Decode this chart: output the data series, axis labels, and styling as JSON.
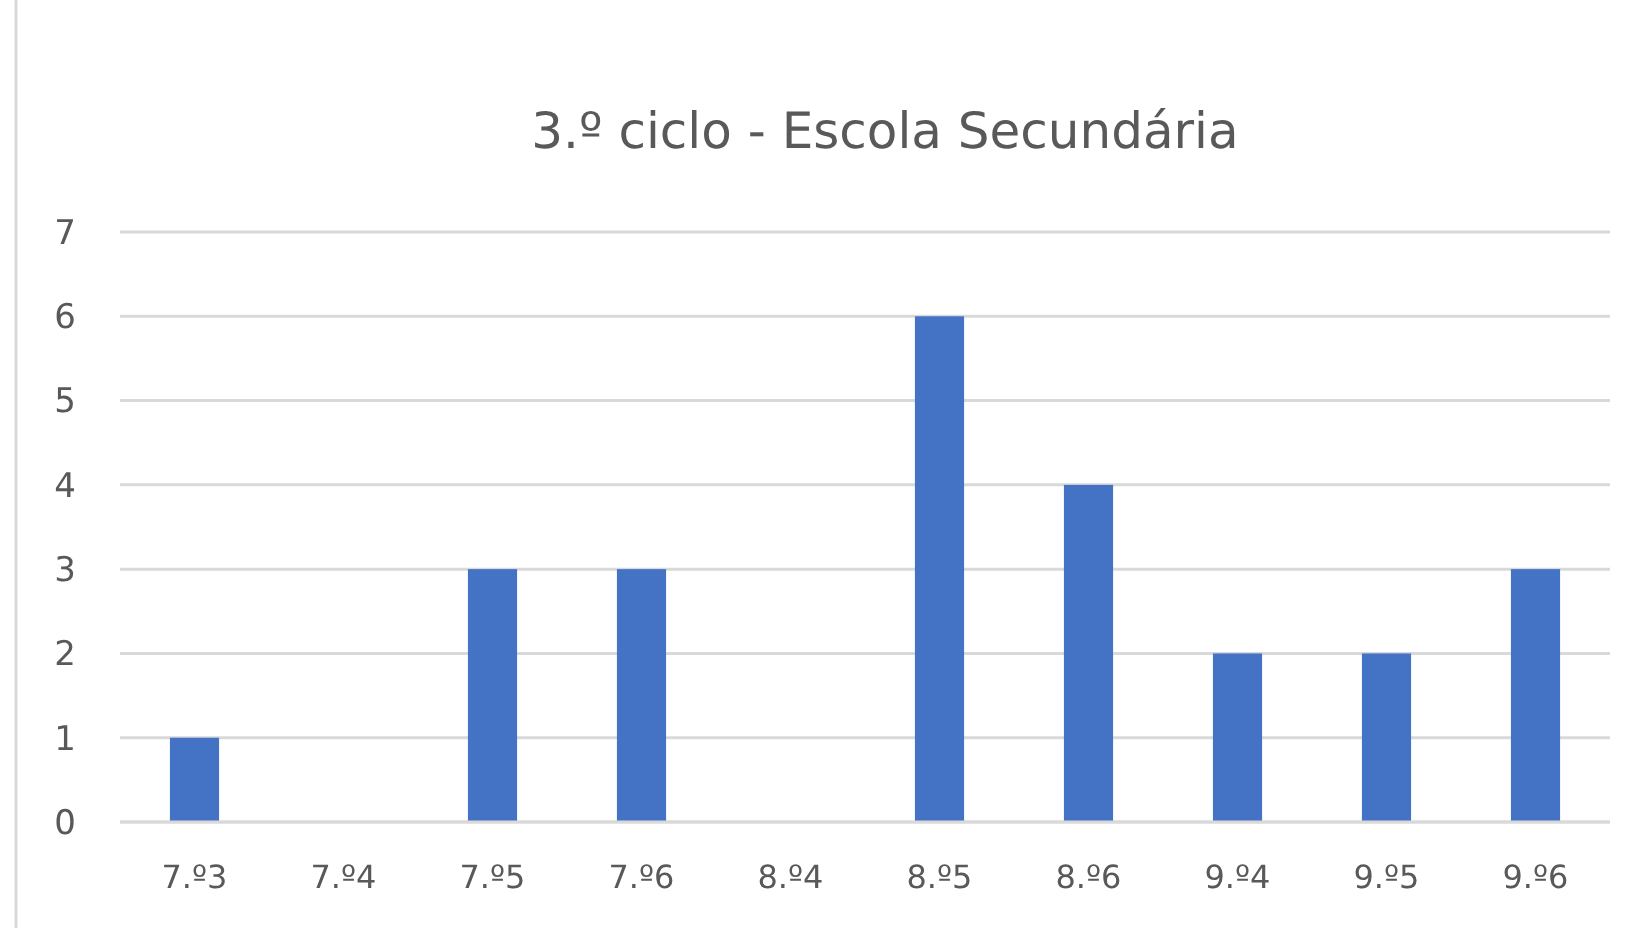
{
  "chart_data": {
    "type": "bar",
    "title": "3.º ciclo - Escola Secundária",
    "categories": [
      "7.º3",
      "7.º4",
      "7.º5",
      "7.º6",
      "8.º4",
      "8.º5",
      "8.º6",
      "9.º4",
      "9.º5",
      "9.º6"
    ],
    "values": [
      1,
      0,
      3,
      3,
      0,
      6,
      4,
      2,
      2,
      3
    ],
    "color": "#4472c4",
    "ylim": [
      0,
      7
    ],
    "yticks": [
      0,
      1,
      2,
      3,
      4,
      5,
      6,
      7
    ],
    "grid": "y"
  }
}
